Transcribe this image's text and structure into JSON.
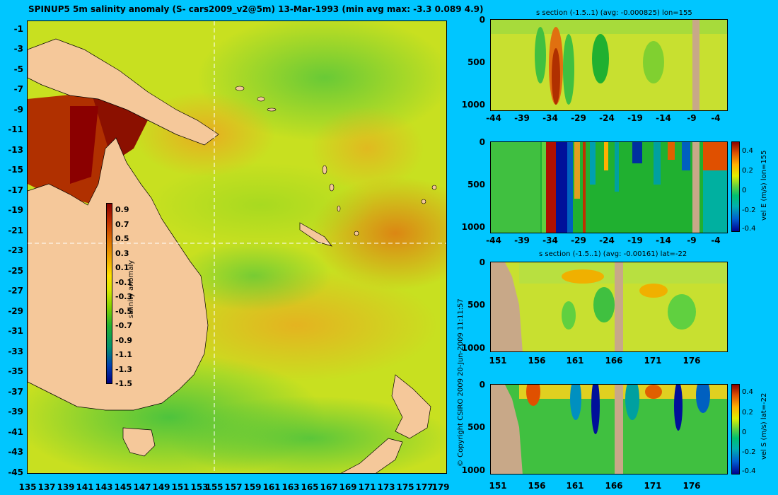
{
  "title": "SPINUP5 5m salinity anomaly (S- cars2009_v2@5m) 13-Mar-1993 (min avg max: -3.3 0.089 4.9)",
  "copyright": "© Copyright CSIRO 2009   20-Jun-2009 11:11:57",
  "map": {
    "lat_ticks": [
      "-1",
      "-3",
      "-5",
      "-7",
      "-9",
      "-11",
      "-13",
      "-15",
      "-17",
      "-19",
      "-21",
      "-23",
      "-25",
      "-27",
      "-29",
      "-31",
      "-33",
      "-35",
      "-37",
      "-39",
      "-41",
      "-43",
      "-45"
    ],
    "lon_ticks": [
      "135",
      "137",
      "139",
      "141",
      "143",
      "145",
      "147",
      "149",
      "151",
      "153",
      "155",
      "157",
      "159",
      "161",
      "163",
      "165",
      "167",
      "169",
      "171",
      "173",
      "175",
      "177",
      "179"
    ],
    "colorbar": {
      "labels": [
        "0.9",
        "0.7",
        "0.5",
        "0.3",
        "0.1",
        "-0.1",
        "-0.3",
        "-0.5",
        "-0.7",
        "-0.9",
        "-1.1",
        "-1.3",
        "-1.5"
      ],
      "title": "salinity anomaly"
    }
  },
  "panels": {
    "p1": {
      "title": "s section (-1.5..1) (avg: -0.000825) lon=155",
      "xticks": [
        "-44",
        "-39",
        "-34",
        "-29",
        "-24",
        "-19",
        "-14",
        "-9",
        "-4"
      ],
      "yticks": [
        "0",
        "500",
        "1000"
      ]
    },
    "p2": {
      "xticks": [
        "-44",
        "-39",
        "-34",
        "-29",
        "-24",
        "-19",
        "-14",
        "-9",
        "-4"
      ],
      "yticks": [
        "0",
        "500",
        "1000"
      ],
      "cbar_labels": [
        "0.4",
        "0.2",
        "0",
        "-0.2",
        "-0.4"
      ],
      "cbar_title": "vel E (m/s) lon=155"
    },
    "p3": {
      "title": "s section (-1.5..1) (avg: -0.00161) lat=-22",
      "xticks": [
        "151",
        "156",
        "161",
        "166",
        "171",
        "176"
      ],
      "yticks": [
        "0",
        "500",
        "1000"
      ]
    },
    "p4": {
      "xticks": [
        "151",
        "156",
        "161",
        "166",
        "171",
        "176"
      ],
      "yticks": [
        "0",
        "500",
        "1000"
      ],
      "cbar_labels": [
        "0.4",
        "0.2",
        "0",
        "-0.2",
        "-0.4"
      ],
      "cbar_title": "vel S (m/s) lat=-22"
    }
  },
  "colors": {
    "background": "#00c6ff",
    "land": "#f5c89a",
    "section_land": "#c8a888"
  }
}
